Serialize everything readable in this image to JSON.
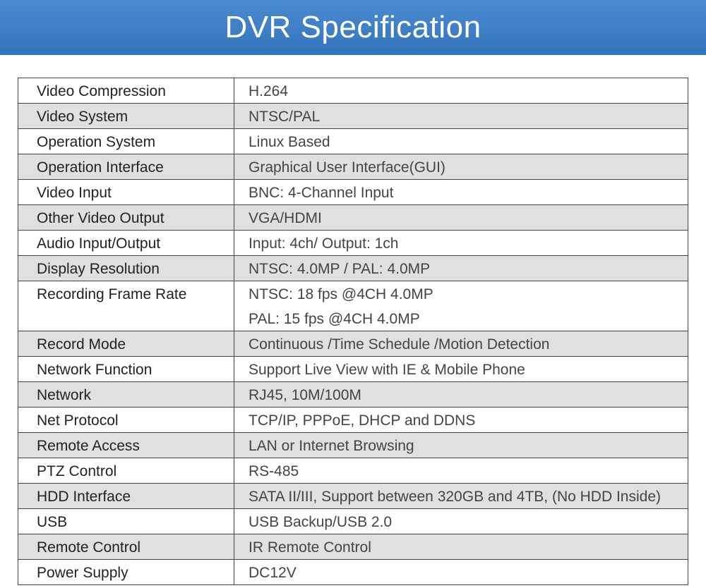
{
  "header": {
    "title": "DVR Specification"
  },
  "table": {
    "rows": [
      [
        "Video Compression",
        "H.264"
      ],
      [
        "Video System",
        "NTSC/PAL"
      ],
      [
        "Operation System",
        "Linux Based"
      ],
      [
        "Operation Interface",
        "Graphical User Interface(GUI)"
      ],
      [
        "Video Input",
        "BNC: 4-Channel Input"
      ],
      [
        "Other Video Output",
        "VGA/HDMI"
      ],
      [
        "Audio Input/Output",
        "Input: 4ch/ Output: 1ch"
      ],
      [
        "Display Resolution",
        "NTSC: 4.0MP / PAL: 4.0MP"
      ],
      [
        "Recording Frame Rate",
        [
          "NTSC: 18 fps @4CH 4.0MP",
          "PAL: 15 fps @4CH 4.0MP"
        ]
      ],
      [
        "Record Mode",
        "Continuous /Time Schedule /Motion Detection"
      ],
      [
        "Network Function",
        "Support Live View with IE & Mobile Phone"
      ],
      [
        "Network",
        "RJ45, 10M/100M"
      ],
      [
        "Net Protocol",
        "TCP/IP, PPPoE, DHCP and DDNS"
      ],
      [
        "Remote Access",
        "LAN or Internet Browsing"
      ],
      [
        "PTZ Control",
        "RS-485"
      ],
      [
        "HDD Interface",
        "SATA II/III, Support between 320GB and 4TB, (No HDD Inside)"
      ],
      [
        "USB",
        "USB Backup/USB 2.0"
      ],
      [
        "Remote Control",
        "IR Remote Control"
      ],
      [
        "Power Supply",
        "DC12V"
      ]
    ]
  }
}
